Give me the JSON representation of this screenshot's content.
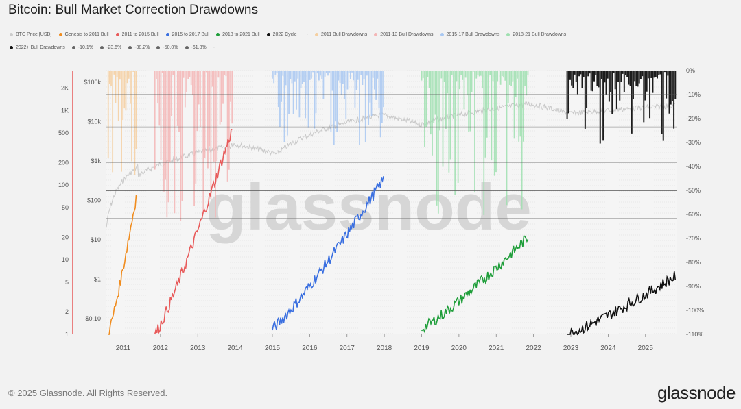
{
  "chart_data": {
    "type": "line",
    "title": "Bitcoin: Bull Market Correction Drawdowns",
    "legend": [
      {
        "name": "BTC Price [USD]",
        "color": "#cccccc"
      },
      {
        "name": "Genesis to 2011 Bull",
        "color": "#f08c1e"
      },
      {
        "name": "2011 to 2015 Bull",
        "color": "#e85a5a"
      },
      {
        "name": "2015 to 2017 Bull",
        "color": "#3a6fe0"
      },
      {
        "name": "2018 to 2021 Bull",
        "color": "#1f9e3a"
      },
      {
        "name": "2022 Cycle+",
        "color": "#111111"
      },
      {
        "name": "-",
        "color": ""
      },
      {
        "name": "2011 Bull Drawdowns",
        "color": "#f5cfa0"
      },
      {
        "name": "2011-13 Bull Drawdowns",
        "color": "#f4b6b6"
      },
      {
        "name": "2015-17 Bull Drawdowns",
        "color": "#a9c8f2"
      },
      {
        "name": "2018-21 Bull Drawdowns",
        "color": "#9fe0b0"
      },
      {
        "name": "2022+ Bull Drawdowns",
        "color": "#111111"
      },
      {
        "name": "-10.1%",
        "color": "#666666"
      },
      {
        "name": "-23.6%",
        "color": "#666666"
      },
      {
        "name": "-38.2%",
        "color": "#666666"
      },
      {
        "name": "-50.0%",
        "color": "#666666"
      },
      {
        "name": "-61.8%",
        "color": "#666666"
      },
      {
        "name": "-",
        "color": ""
      }
    ],
    "x_ticks": [
      "2011",
      "2012",
      "2013",
      "2014",
      "2015",
      "2016",
      "2017",
      "2018",
      "2019",
      "2020",
      "2021",
      "2022",
      "2023",
      "2024",
      "2025"
    ],
    "left_multiple_axis": {
      "scale": "log",
      "ticks": [
        "2K",
        "1K",
        "500",
        "200",
        "100",
        "50",
        "20",
        "10",
        "5",
        "2",
        "1"
      ],
      "values": [
        2000,
        1000,
        500,
        200,
        100,
        50,
        20,
        10,
        5,
        2,
        1
      ],
      "axis_color": "#e85a5a"
    },
    "left_price_axis": {
      "scale": "log",
      "ticks": [
        "$100k",
        "$10k",
        "$1k",
        "$100",
        "$10",
        "$1",
        "$0.10"
      ],
      "values": [
        100000,
        10000,
        1000,
        100,
        10,
        1,
        0.1
      ]
    },
    "right_drawdown_axis": {
      "ticks": [
        "0%",
        "-10%",
        "-20%",
        "-30%",
        "-40%",
        "-50%",
        "-60%",
        "-70%",
        "-80%",
        "-90%",
        "-100%",
        "-110%"
      ],
      "values": [
        0,
        -10,
        -20,
        -30,
        -40,
        -50,
        -60,
        -70,
        -80,
        -90,
        -100,
        -110
      ]
    },
    "fib_lines": [
      -10.1,
      -23.6,
      -38.2,
      -50.0,
      -61.8
    ],
    "watermark": "glassnode",
    "series": [
      {
        "name": "Genesis to 2011 Bull",
        "color": "#f08c1e",
        "from": 2010.6,
        "to": 2011.35,
        "start": 1,
        "end": 70
      },
      {
        "name": "2011 to 2015 Bull",
        "color": "#e85a5a",
        "from": 2011.85,
        "to": 2013.92,
        "start": 1,
        "end": 550
      },
      {
        "name": "2015 to 2017 Bull",
        "color": "#3a6fe0",
        "from": 2015.0,
        "to": 2017.98,
        "start": 1.2,
        "end": 120
      },
      {
        "name": "2018 to 2021 Bull",
        "color": "#1f9e3a",
        "from": 2019.0,
        "to": 2021.85,
        "start": 1.2,
        "end": 20
      },
      {
        "name": "2022 Cycle+",
        "color": "#111111",
        "from": 2022.9,
        "to": 2025.8,
        "start": 1,
        "end": 6
      }
    ],
    "drawdowns": [
      {
        "name": "2011 Bull Drawdowns",
        "color": "#f5cfa0",
        "from": 2010.6,
        "to": 2011.35,
        "max": -48
      },
      {
        "name": "2011-13 Bull Drawdowns",
        "color": "#f4b6b6",
        "from": 2011.85,
        "to": 2013.92,
        "max": -67
      },
      {
        "name": "2015-17 Bull Drawdowns",
        "color": "#a9c8f2",
        "from": 2015.0,
        "to": 2017.98,
        "max": -33
      },
      {
        "name": "2018-21 Bull Drawdowns",
        "color": "#9fe0b0",
        "from": 2019.0,
        "to": 2021.85,
        "max": -62
      },
      {
        "name": "2022+ Bull Drawdowns",
        "color": "#111111",
        "from": 2022.9,
        "to": 2025.8,
        "max": -28
      }
    ]
  },
  "footer": {
    "copyright": "© 2025 Glassnode. All Rights Reserved.",
    "logo": "glassnode"
  }
}
